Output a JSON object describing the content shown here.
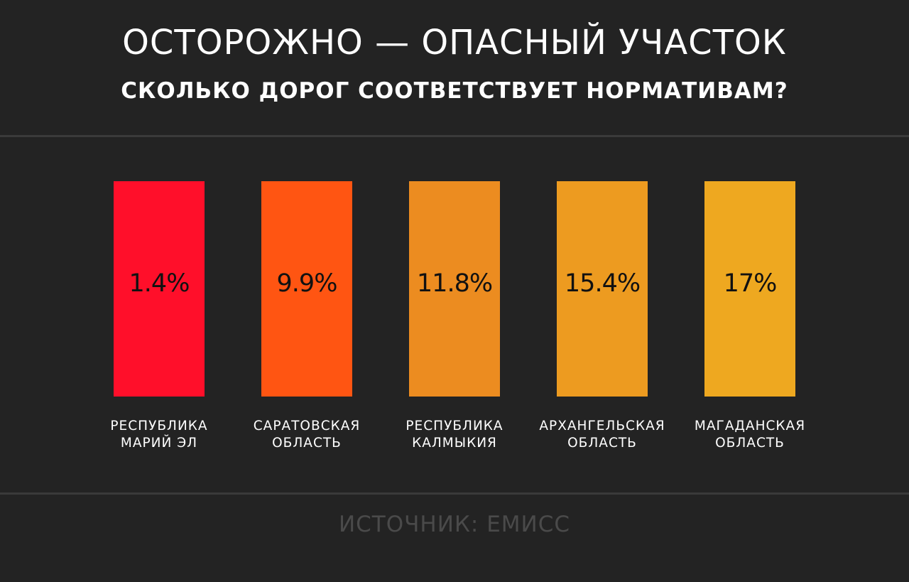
{
  "header": {
    "title": "ОСТОРОЖНО — ОПАСНЫЙ УЧАСТОК",
    "subtitle": "СКОЛЬКО ДОРОГ СООТВЕТСТВУЕТ НОРМАТИВАМ?"
  },
  "footer": {
    "source": "ИСТОЧНИК: ЕМИСС"
  },
  "chart_data": {
    "type": "bar",
    "title": "ОСТОРОЖНО — ОПАСНЫЙ УЧАСТОК",
    "subtitle": "СКОЛЬКО ДОРОГ СООТВЕТСТВУЕТ НОРМАТИВАМ?",
    "xlabel": "",
    "ylabel": "",
    "grid": false,
    "categories": [
      [
        "РЕСПУБЛИКА",
        "МАРИЙ ЭЛ"
      ],
      [
        "САРАТОВСКАЯ",
        "ОБЛАСТЬ"
      ],
      [
        "РЕСПУБЛИКА",
        "КАЛМЫКИЯ"
      ],
      [
        "АРХАНГЕЛЬСКАЯ",
        "ОБЛАСТЬ"
      ],
      [
        "МАГАДАНСКАЯ",
        "ОБЛАСТЬ"
      ]
    ],
    "values": [
      1.4,
      9.9,
      11.8,
      15.4,
      17
    ],
    "value_labels": [
      "1.4%",
      "9.9%",
      "11.8%",
      "15.4%",
      "17%"
    ],
    "colors": [
      "#ff0f2a",
      "#ff5512",
      "#ec8c20",
      "#ed9b20",
      "#eea820"
    ]
  }
}
